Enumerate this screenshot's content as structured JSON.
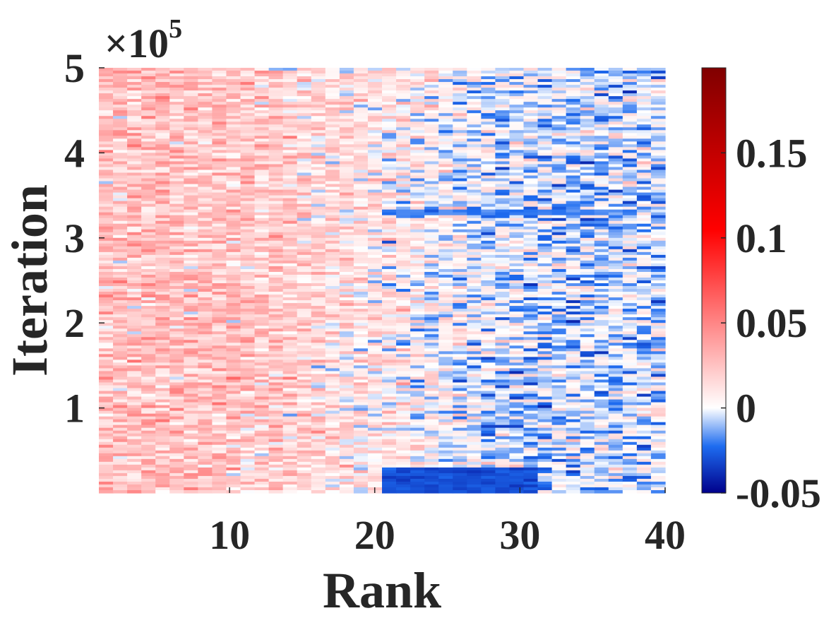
{
  "chart_data": {
    "type": "heatmap",
    "xlabel": "Rank",
    "ylabel": "Iteration",
    "x_range": [
      1,
      40
    ],
    "y_range": [
      0,
      500000
    ],
    "x_ticks": [
      10,
      20,
      30,
      40
    ],
    "x_tick_labels": [
      "10",
      "20",
      "30",
      "40"
    ],
    "y_ticks": [
      100000,
      200000,
      300000,
      400000,
      500000
    ],
    "y_tick_labels": [
      "1",
      "2",
      "3",
      "4",
      "5"
    ],
    "y_multiplier": {
      "base": "×10",
      "exponent": "5"
    },
    "colorbar": {
      "range": [
        -0.05,
        0.2
      ],
      "ticks": [
        -0.05,
        0,
        0.05,
        0.1,
        0.15
      ],
      "tick_labels": [
        "-0.05",
        "0",
        "0.05",
        "0.1",
        "0.15"
      ],
      "colors": {
        "min": "#00008b",
        "low": "#1e6cf0",
        "zero": "#ffffff",
        "mid": "#ff0000",
        "max": "#800000"
      }
    },
    "legend": "colorbar-right",
    "grid": false,
    "pattern_summary": {
      "ranks_1_to_10_mean": 0.025,
      "ranks_30_to_40_mean": -0.005,
      "low_band_ranks": [
        21,
        31
      ],
      "low_band_iterations": [
        0,
        30000
      ],
      "low_band_value": -0.03,
      "streak_iteration": 330000
    }
  }
}
